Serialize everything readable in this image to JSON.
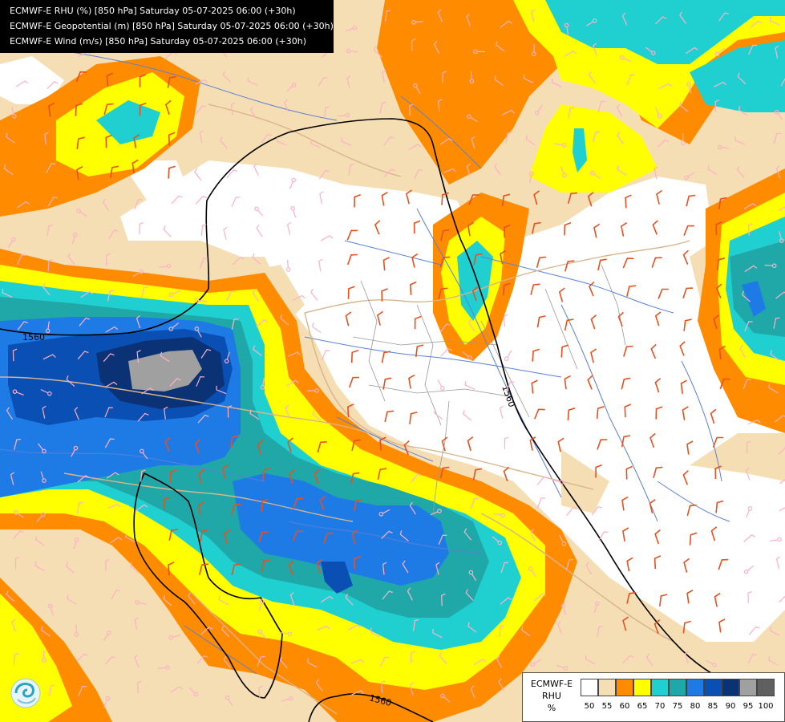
{
  "header": {
    "lines": [
      "ECMWF-E RHU (%) [850 hPa] Saturday 05-07-2025 06:00 (+30h)",
      "ECMWF-E Geopotential (m) [850 hPa] Saturday 05-07-2025 06:00 (+30h)",
      "ECMWF-E Wind (m/s) [850 hPa] Saturday 05-07-2025 06:00 (+30h)"
    ]
  },
  "legend": {
    "model": "ECMWF-E",
    "variable": "RHU",
    "unit": "%",
    "ticks": [
      "50",
      "55",
      "60",
      "65",
      "70",
      "75",
      "80",
      "85",
      "90",
      "95",
      "100"
    ],
    "colors": [
      "#ffffff",
      "#f5deb3",
      "#ff8c00",
      "#ffff00",
      "#20d0d0",
      "#20a8a8",
      "#1e7be6",
      "#0a50b4",
      "#0a3275",
      "#a0a0a0",
      "#606060"
    ]
  },
  "contours": {
    "labels": [
      "1560",
      "1560",
      "1560"
    ]
  },
  "map_colors": {
    "rivers": "#5a7fd8",
    "borders": "#d8b48c",
    "admin": "#999999",
    "contour": "#000000",
    "wind_light": "#ffb0c8",
    "wind_strong": "#e8501e"
  },
  "icons": {
    "logo": "agency-swirl-logo"
  }
}
